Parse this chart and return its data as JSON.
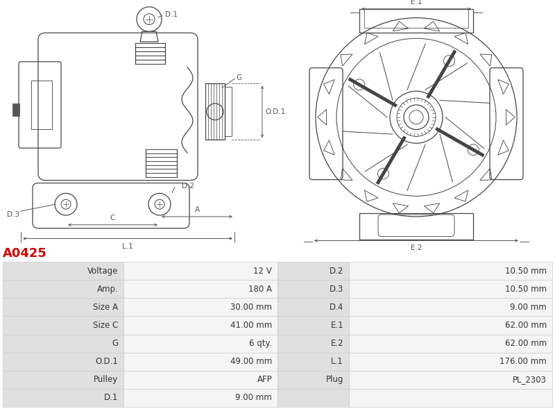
{
  "title": "A0425",
  "title_color": "#cc0000",
  "bg_color": "#ffffff",
  "table_label_bg": "#e0e0e0",
  "table_value_bg": "#f5f5f5",
  "table_border_color": "#cccccc",
  "dim_color": "#555555",
  "draw_color": "#444444",
  "rows": [
    [
      "Voltage",
      "12 V",
      "D.2",
      "10.50 mm"
    ],
    [
      "Amp.",
      "180 A",
      "D.3",
      "10.50 mm"
    ],
    [
      "Size A",
      "30.00 mm",
      "D.4",
      "9.00 mm"
    ],
    [
      "Size C",
      "41.00 mm",
      "E.1",
      "62.00 mm"
    ],
    [
      "G",
      "6 qty.",
      "E.2",
      "62.00 mm"
    ],
    [
      "O.D.1",
      "49.00 mm",
      "L.1",
      "176.00 mm"
    ],
    [
      "Pulley",
      "AFP",
      "Plug",
      "PL_2303"
    ],
    [
      "D.1",
      "9.00 mm",
      "",
      ""
    ]
  ]
}
